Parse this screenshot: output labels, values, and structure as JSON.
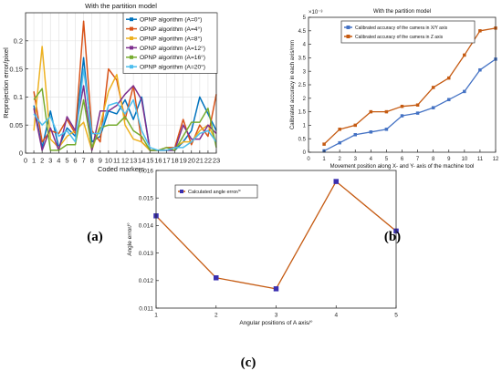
{
  "panel_labels": [
    "(a)",
    "(b)",
    "(c)"
  ],
  "chart_data": [
    {
      "type": "line",
      "title": "With the partition model",
      "xlabel": "Coded markers",
      "ylabel": "Reprojection error/pixel",
      "x": [
        1,
        2,
        3,
        4,
        5,
        6,
        7,
        8,
        9,
        10,
        11,
        12,
        13,
        14,
        15,
        16,
        17,
        18,
        19,
        20,
        21,
        22,
        23
      ],
      "xlim": [
        0,
        23
      ],
      "ylim": [
        0,
        0.25
      ],
      "xticks": [
        0,
        1,
        2,
        3,
        4,
        5,
        6,
        7,
        8,
        9,
        10,
        11,
        12,
        13,
        14,
        15,
        16,
        17,
        18,
        19,
        20,
        21,
        22,
        23
      ],
      "yticks": [
        0,
        0.05,
        0.1,
        0.15,
        0.2
      ],
      "grid": true,
      "legend_position": "top-right",
      "series": [
        {
          "name": "OPNP algorithm (A=0°)",
          "color": "#0072bd",
          "values": [
            0.085,
            0.01,
            0.075,
            0.01,
            0.045,
            0.03,
            0.17,
            0.02,
            0.03,
            0.075,
            0.07,
            0.095,
            0.06,
            0.1,
            0.005,
            0.005,
            0.005,
            0.005,
            0.02,
            0.04,
            0.1,
            0.07,
            0.04
          ]
        },
        {
          "name": "OPNP algorithm (A=4°)",
          "color": "#d95319",
          "values": [
            0.11,
            0.02,
            0.04,
            0.035,
            0.06,
            0.035,
            0.235,
            0.04,
            0.02,
            0.15,
            0.13,
            0.06,
            0.12,
            0.02,
            0.005,
            0.005,
            0.01,
            0.01,
            0.06,
            0.015,
            0.05,
            0.03,
            0.105
          ]
        },
        {
          "name": "OPNP algorithm (A=8°)",
          "color": "#edb120",
          "values": [
            0.04,
            0.19,
            0.025,
            0.01,
            0.03,
            0.04,
            0.055,
            0.005,
            0.05,
            0.11,
            0.14,
            0.05,
            0.025,
            0.02,
            0.005,
            0.005,
            0.005,
            0.01,
            0.02,
            0.02,
            0.04,
            0.05,
            0.02
          ]
        },
        {
          "name": "OPNP algorithm (A=12°)",
          "color": "#7e2f8e",
          "values": [
            0.08,
            0.005,
            0.045,
            0.005,
            0.065,
            0.04,
            0.12,
            0.005,
            0.075,
            0.075,
            0.085,
            0.105,
            0.12,
            0.095,
            0.005,
            0.005,
            0.005,
            0.005,
            0.05,
            0.025,
            0.025,
            0.05,
            0.035
          ]
        },
        {
          "name": "OPNP algorithm (A=16°)",
          "color": "#77ac30",
          "values": [
            0.095,
            0.115,
            0.005,
            0.005,
            0.015,
            0.015,
            0.095,
            0.01,
            0.045,
            0.05,
            0.05,
            0.065,
            0.04,
            0.03,
            0.005,
            0.005,
            0.01,
            0.005,
            0.03,
            0.055,
            0.055,
            0.08,
            0.01
          ]
        },
        {
          "name": "OPNP algorithm (A=20°)",
          "color": "#4dbeee",
          "values": [
            0.07,
            0.05,
            0.065,
            0.03,
            0.04,
            0.02,
            0.15,
            0.035,
            0.035,
            0.085,
            0.09,
            0.07,
            0.095,
            0.04,
            0.01,
            0.005,
            0.005,
            0.01,
            0.01,
            0.02,
            0.035,
            0.04,
            0.02
          ]
        }
      ]
    },
    {
      "type": "line",
      "title": "With the partition model",
      "xlabel": "Movement position along X- and Y- axis of the machine tool",
      "ylabel": "Calibrated accuracy in each axis/mm",
      "exponent_label": "×10⁻³",
      "x": [
        1,
        2,
        3,
        4,
        5,
        6,
        7,
        8,
        9,
        10,
        11,
        12
      ],
      "xlim": [
        0,
        12
      ],
      "ylim": [
        0,
        5
      ],
      "xticks": [
        0,
        1,
        2,
        3,
        4,
        5,
        6,
        7,
        8,
        9,
        10,
        11,
        12
      ],
      "yticks": [
        0,
        0.5,
        1,
        1.5,
        2,
        2.5,
        3,
        3.5,
        4,
        4.5,
        5
      ],
      "grid": false,
      "legend_position": "top-left",
      "series": [
        {
          "name": "Calibrated accuracy of the camera in X/Y axis",
          "color": "#4472c4",
          "values": [
            0.05,
            0.35,
            0.65,
            0.75,
            0.85,
            1.35,
            1.45,
            1.65,
            1.95,
            2.25,
            3.05,
            3.45
          ]
        },
        {
          "name": "Calibrated accuracy of the camera in Z axis",
          "color": "#c55a11",
          "values": [
            0.3,
            0.85,
            1.0,
            1.5,
            1.5,
            1.7,
            1.75,
            2.4,
            2.75,
            3.6,
            4.5,
            4.6
          ]
        }
      ]
    },
    {
      "type": "line",
      "title": "",
      "xlabel": "Angular positions of A axis/°",
      "ylabel": "Angle error/°",
      "x": [
        1,
        2,
        3,
        4,
        5
      ],
      "xlim": [
        1,
        5
      ],
      "ylim": [
        0.011,
        0.016
      ],
      "xticks": [
        1,
        2,
        3,
        4,
        5
      ],
      "yticks": [
        0.011,
        0.012,
        0.013,
        0.014,
        0.015,
        0.016
      ],
      "grid": false,
      "legend_position": "top-left",
      "series": [
        {
          "name": "Calculated angle error/°",
          "color": "#c55a11",
          "marker_color": "#3a2fb0",
          "values": [
            0.01435,
            0.0121,
            0.0117,
            0.0156,
            0.0138
          ]
        }
      ]
    }
  ]
}
